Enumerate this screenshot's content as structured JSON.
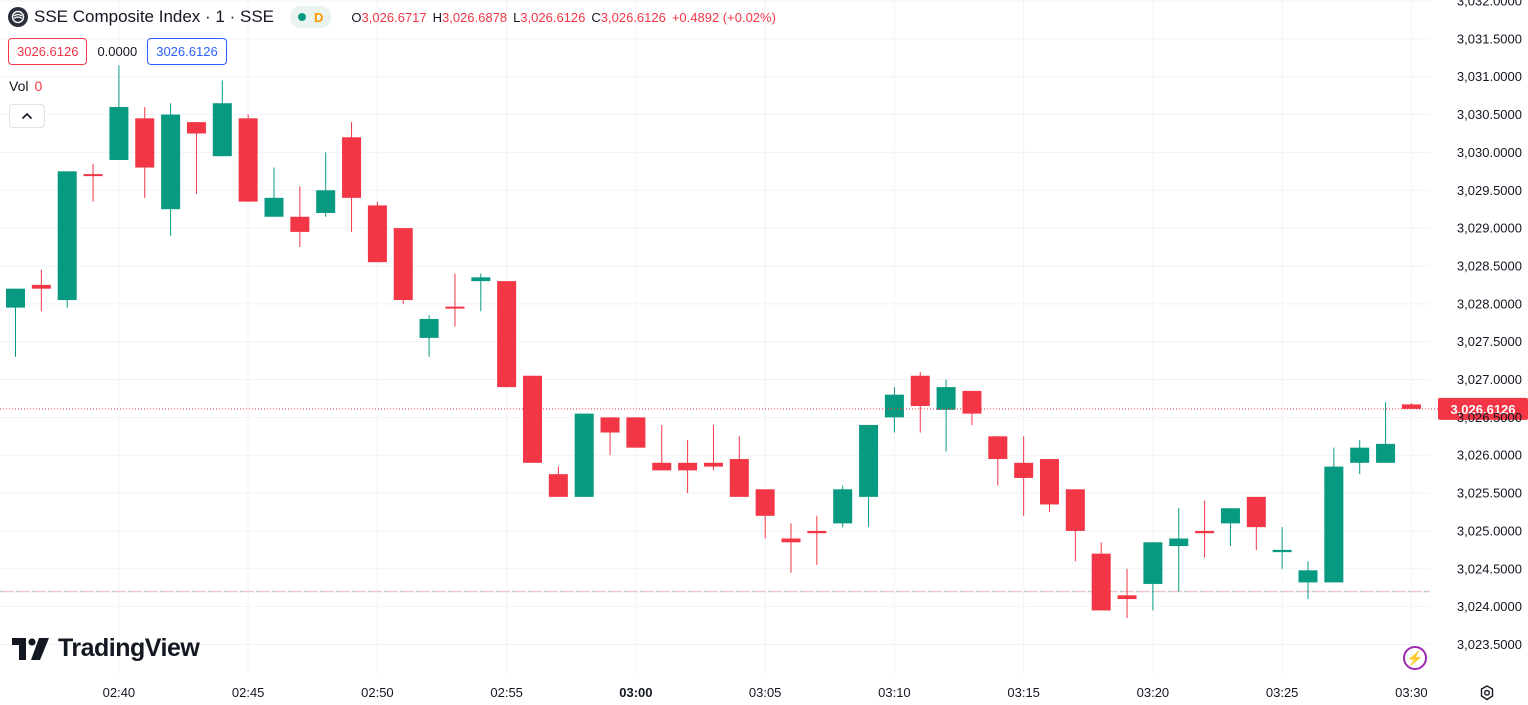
{
  "header": {
    "title": "SSE Composite Index · 1 · SSE",
    "status_letter": "D",
    "ohlc": [
      {
        "key": "O",
        "value": "3,026.6717"
      },
      {
        "key": "H",
        "value": "3,026.6878"
      },
      {
        "key": "L",
        "value": "3,026.6126"
      },
      {
        "key": "C",
        "value": "3,026.6126"
      }
    ],
    "change": "+0.4892 (+0.02%)"
  },
  "price_boxes": {
    "sell": "3026.6126",
    "spread": "0.0000",
    "buy": "3026.6126"
  },
  "volume": {
    "label": "Vol",
    "value": "0"
  },
  "branding": {
    "logo_text": "TradingView"
  },
  "colors": {
    "up": "#089981",
    "down": "#f23645",
    "grid": "#f0f3fa",
    "text": "#131722"
  },
  "icons": {
    "collapse": "chevron-up-icon",
    "lightning": "lightning-icon",
    "settings": "gear-icon",
    "symbol": "exchange-logo-icon"
  },
  "chart_data": {
    "type": "candlestick",
    "y_axis": {
      "min": 3023.5,
      "max": 3032.0,
      "tick_labels": [
        "3,032.0000",
        "3,031.5000",
        "3,031.0000",
        "3,030.5000",
        "3,030.0000",
        "3,029.5000",
        "3,029.0000",
        "3,028.5000",
        "3,028.0000",
        "3,027.5000",
        "3,027.0000",
        "3,026.5000",
        "3,026.0000",
        "3,025.5000",
        "3,025.0000",
        "3,024.5000",
        "3,024.0000",
        "3,023.5000"
      ]
    },
    "x_axis": {
      "start_time": "02:36",
      "step_minutes": 1,
      "tick_labels": [
        "02:40",
        "02:45",
        "02:50",
        "02:55",
        "03:00",
        "03:05",
        "03:10",
        "03:15",
        "03:20",
        "03:25",
        "03:30"
      ],
      "bold_label": "03:00"
    },
    "last_price": {
      "value": 3026.6126,
      "label": "3,026.6126"
    },
    "reference_line": 3024.2,
    "candles": [
      {
        "t": "02:36",
        "o": 3027.95,
        "h": 3028.2,
        "l": 3027.3,
        "c": 3028.2
      },
      {
        "t": "02:37",
        "o": 3028.25,
        "h": 3028.45,
        "l": 3027.9,
        "c": 3028.2
      },
      {
        "t": "02:38",
        "o": 3028.05,
        "h": 3029.75,
        "l": 3027.95,
        "c": 3029.75
      },
      {
        "t": "02:39",
        "o": 3029.7,
        "h": 3029.85,
        "l": 3029.35,
        "c": 3029.7
      },
      {
        "t": "02:40",
        "o": 3029.9,
        "h": 3031.15,
        "l": 3029.9,
        "c": 3030.6
      },
      {
        "t": "02:41",
        "o": 3030.45,
        "h": 3030.6,
        "l": 3029.4,
        "c": 3029.8
      },
      {
        "t": "02:42",
        "o": 3029.25,
        "h": 3030.65,
        "l": 3028.9,
        "c": 3030.5
      },
      {
        "t": "02:43",
        "o": 3030.4,
        "h": 3030.4,
        "l": 3029.45,
        "c": 3030.25
      },
      {
        "t": "02:44",
        "o": 3029.95,
        "h": 3030.95,
        "l": 3029.95,
        "c": 3030.65
      },
      {
        "t": "02:45",
        "o": 3030.45,
        "h": 3030.5,
        "l": 3029.35,
        "c": 3029.35
      },
      {
        "t": "02:46",
        "o": 3029.15,
        "h": 3029.8,
        "l": 3029.15,
        "c": 3029.4
      },
      {
        "t": "02:47",
        "o": 3029.15,
        "h": 3029.55,
        "l": 3028.75,
        "c": 3028.95
      },
      {
        "t": "02:48",
        "o": 3029.2,
        "h": 3030.0,
        "l": 3029.15,
        "c": 3029.5
      },
      {
        "t": "02:49",
        "o": 3030.2,
        "h": 3030.4,
        "l": 3028.95,
        "c": 3029.4
      },
      {
        "t": "02:50",
        "o": 3029.3,
        "h": 3029.35,
        "l": 3028.55,
        "c": 3028.55
      },
      {
        "t": "02:51",
        "o": 3029.0,
        "h": 3029.0,
        "l": 3028.0,
        "c": 3028.05
      },
      {
        "t": "02:52",
        "o": 3027.55,
        "h": 3027.85,
        "l": 3027.3,
        "c": 3027.8
      },
      {
        "t": "02:53",
        "o": 3027.95,
        "h": 3028.4,
        "l": 3027.7,
        "c": 3027.95
      },
      {
        "t": "02:54",
        "o": 3028.3,
        "h": 3028.4,
        "l": 3027.9,
        "c": 3028.35
      },
      {
        "t": "02:55",
        "o": 3028.3,
        "h": 3028.3,
        "l": 3026.9,
        "c": 3026.9
      },
      {
        "t": "02:56",
        "o": 3027.05,
        "h": 3027.05,
        "l": 3025.9,
        "c": 3025.9
      },
      {
        "t": "02:57",
        "o": 3025.75,
        "h": 3025.85,
        "l": 3025.45,
        "c": 3025.45
      },
      {
        "t": "02:58",
        "o": 3025.45,
        "h": 3026.55,
        "l": 3025.45,
        "c": 3026.55
      },
      {
        "t": "02:59",
        "o": 3026.5,
        "h": 3026.5,
        "l": 3026.0,
        "c": 3026.3
      },
      {
        "t": "03:00",
        "o": 3026.5,
        "h": 3026.5,
        "l": 3026.1,
        "c": 3026.1
      },
      {
        "t": "03:01",
        "o": 3025.9,
        "h": 3026.4,
        "l": 3025.8,
        "c": 3025.8
      },
      {
        "t": "03:02",
        "o": 3025.9,
        "h": 3026.2,
        "l": 3025.5,
        "c": 3025.8
      },
      {
        "t": "03:03",
        "o": 3025.9,
        "h": 3026.4,
        "l": 3025.8,
        "c": 3025.85
      },
      {
        "t": "03:04",
        "o": 3025.95,
        "h": 3026.25,
        "l": 3025.45,
        "c": 3025.45
      },
      {
        "t": "03:05",
        "o": 3025.55,
        "h": 3025.55,
        "l": 3024.9,
        "c": 3025.2
      },
      {
        "t": "03:06",
        "o": 3024.9,
        "h": 3025.1,
        "l": 3024.45,
        "c": 3024.85
      },
      {
        "t": "03:07",
        "o": 3025.0,
        "h": 3025.2,
        "l": 3024.55,
        "c": 3024.97
      },
      {
        "t": "03:08",
        "o": 3025.1,
        "h": 3025.6,
        "l": 3025.05,
        "c": 3025.55
      },
      {
        "t": "03:09",
        "o": 3025.45,
        "h": 3026.4,
        "l": 3025.05,
        "c": 3026.4
      },
      {
        "t": "03:10",
        "o": 3026.5,
        "h": 3026.9,
        "l": 3026.3,
        "c": 3026.8
      },
      {
        "t": "03:11",
        "o": 3027.05,
        "h": 3027.1,
        "l": 3026.3,
        "c": 3026.65
      },
      {
        "t": "03:12",
        "o": 3026.6,
        "h": 3027.0,
        "l": 3026.05,
        "c": 3026.9
      },
      {
        "t": "03:13",
        "o": 3026.85,
        "h": 3026.85,
        "l": 3026.4,
        "c": 3026.55
      },
      {
        "t": "03:14",
        "o": 3026.25,
        "h": 3026.25,
        "l": 3025.6,
        "c": 3025.95
      },
      {
        "t": "03:15",
        "o": 3025.9,
        "h": 3026.25,
        "l": 3025.2,
        "c": 3025.7
      },
      {
        "t": "03:16",
        "o": 3025.95,
        "h": 3025.95,
        "l": 3025.25,
        "c": 3025.35
      },
      {
        "t": "03:17",
        "o": 3025.55,
        "h": 3025.55,
        "l": 3024.6,
        "c": 3025.0
      },
      {
        "t": "03:18",
        "o": 3024.7,
        "h": 3024.85,
        "l": 3023.95,
        "c": 3023.95
      },
      {
        "t": "03:19",
        "o": 3024.15,
        "h": 3024.5,
        "l": 3023.85,
        "c": 3024.1
      },
      {
        "t": "03:20",
        "o": 3024.3,
        "h": 3024.85,
        "l": 3023.95,
        "c": 3024.85
      },
      {
        "t": "03:21",
        "o": 3024.8,
        "h": 3025.3,
        "l": 3024.2,
        "c": 3024.9
      },
      {
        "t": "03:22",
        "o": 3025.0,
        "h": 3025.4,
        "l": 3024.65,
        "c": 3024.97
      },
      {
        "t": "03:23",
        "o": 3025.1,
        "h": 3025.3,
        "l": 3024.8,
        "c": 3025.3
      },
      {
        "t": "03:24",
        "o": 3025.45,
        "h": 3025.45,
        "l": 3024.75,
        "c": 3025.05
      },
      {
        "t": "03:25",
        "o": 3024.72,
        "h": 3025.05,
        "l": 3024.5,
        "c": 3024.75
      },
      {
        "t": "03:26",
        "o": 3024.32,
        "h": 3024.6,
        "l": 3024.1,
        "c": 3024.48
      },
      {
        "t": "03:27",
        "o": 3024.32,
        "h": 3026.1,
        "l": 3024.32,
        "c": 3025.85
      },
      {
        "t": "03:28",
        "o": 3025.9,
        "h": 3026.2,
        "l": 3025.75,
        "c": 3026.1
      },
      {
        "t": "03:29",
        "o": 3025.9,
        "h": 3026.7,
        "l": 3025.9,
        "c": 3026.15
      },
      {
        "t": "03:30",
        "o": 3026.6717,
        "h": 3026.6878,
        "l": 3026.6126,
        "c": 3026.6126
      }
    ]
  }
}
